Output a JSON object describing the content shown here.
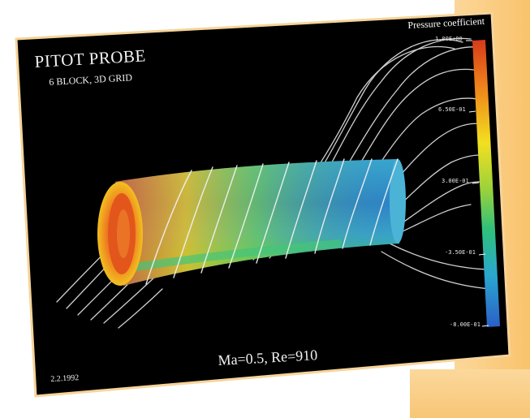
{
  "image": {
    "title": "PITOT PROBE",
    "subtitle": "6 BLOCK, 3D GRID",
    "legend": {
      "title": "Pressure coefficient",
      "ticks": [
        "1.00E+00",
        "6.50E-01",
        "3.00E-01",
        "-3.50E-01",
        "-8.00E-01"
      ],
      "colors": [
        "#d63a1a",
        "#f08a1c",
        "#f2e020",
        "#9bd23a",
        "#2fc07a",
        "#2aa7cf",
        "#2a5fc8"
      ]
    },
    "conditions": "Ma=0.5,  Re=910",
    "date": "2.2.1992"
  }
}
